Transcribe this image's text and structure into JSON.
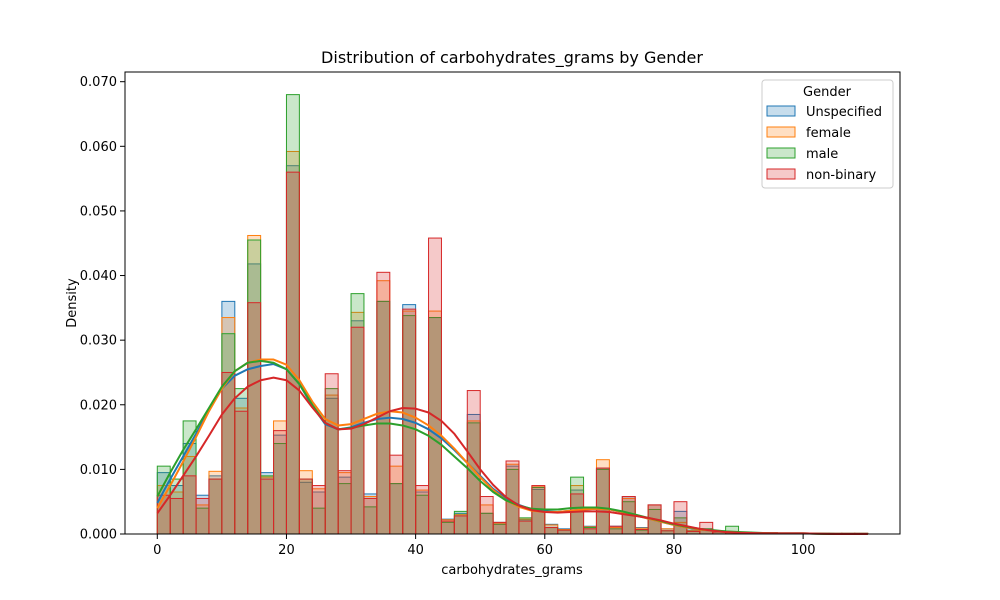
{
  "chart_data": {
    "type": "histogram",
    "title": "Distribution of carbohydrates_grams by Gender",
    "xlabel": "carbohydrates_grams",
    "ylabel": "Density",
    "xlim": [
      -5,
      115
    ],
    "ylim": [
      0,
      0.0715
    ],
    "x_ticks": [
      0,
      20,
      40,
      60,
      80,
      100
    ],
    "y_ticks": [
      0.0,
      0.01,
      0.02,
      0.03,
      0.04,
      0.05,
      0.06,
      0.07
    ],
    "y_tick_labels": [
      "0.000",
      "0.010",
      "0.020",
      "0.030",
      "0.040",
      "0.050",
      "0.060",
      "0.070"
    ],
    "bin_width": 2,
    "bin_edges_start": 0,
    "legend": {
      "title": "Gender",
      "position": "top-right"
    },
    "series": [
      {
        "name": "Unspecified",
        "edge_color": "#1f77b4",
        "fill_color": "#1f77b4",
        "densities": [
          0.0095,
          0.0075,
          0.014,
          0.006,
          0.009,
          0.036,
          0.021,
          0.0418,
          0.0095,
          0.0153,
          0.057,
          0.008,
          0.0065,
          0.021,
          0.0088,
          0.033,
          0.0062,
          0.036,
          0.0078,
          0.0355,
          0.0065,
          0.0335,
          0.0023,
          0.0032,
          0.0185,
          0.0032,
          0.0018,
          0.0105,
          0.0022,
          0.0069,
          0.0015,
          0.0008,
          0.0068,
          0.0012,
          0.0102,
          0.0012,
          0.0058,
          0.001,
          0.0045,
          0.0008,
          0.0035,
          0.0006,
          0.0008,
          0.0005,
          0.0002,
          0.0003,
          0.0002,
          0.0002,
          0.0001,
          0.0001,
          0.0001,
          0.0001,
          0.0001,
          0.0001,
          0.0001
        ],
        "kde": [
          [
            0,
            0.0048
          ],
          [
            2,
            0.0085
          ],
          [
            4,
            0.012
          ],
          [
            6,
            0.0155
          ],
          [
            8,
            0.0192
          ],
          [
            10,
            0.0225
          ],
          [
            12,
            0.0245
          ],
          [
            14,
            0.0255
          ],
          [
            16,
            0.026
          ],
          [
            18,
            0.0263
          ],
          [
            20,
            0.0255
          ],
          [
            22,
            0.0232
          ],
          [
            24,
            0.0198
          ],
          [
            26,
            0.017
          ],
          [
            28,
            0.0162
          ],
          [
            30,
            0.0165
          ],
          [
            32,
            0.0172
          ],
          [
            34,
            0.0178
          ],
          [
            36,
            0.018
          ],
          [
            38,
            0.0178
          ],
          [
            40,
            0.0172
          ],
          [
            42,
            0.0162
          ],
          [
            44,
            0.0148
          ],
          [
            46,
            0.013
          ],
          [
            48,
            0.011
          ],
          [
            50,
            0.009
          ],
          [
            52,
            0.007
          ],
          [
            54,
            0.0055
          ],
          [
            56,
            0.0045
          ],
          [
            58,
            0.0038
          ],
          [
            60,
            0.0035
          ],
          [
            62,
            0.0034
          ],
          [
            64,
            0.0036
          ],
          [
            66,
            0.0038
          ],
          [
            68,
            0.0039
          ],
          [
            70,
            0.0038
          ],
          [
            72,
            0.0034
          ],
          [
            74,
            0.0029
          ],
          [
            76,
            0.0024
          ],
          [
            78,
            0.0019
          ],
          [
            80,
            0.0014
          ],
          [
            82,
            0.001
          ],
          [
            84,
            0.0007
          ],
          [
            86,
            0.0005
          ],
          [
            88,
            0.0003
          ],
          [
            90,
            0.0002
          ],
          [
            95,
            0.0001
          ],
          [
            100,
            0.0001
          ],
          [
            105,
            0.0
          ],
          [
            110,
            0.0
          ]
        ]
      },
      {
        "name": "female",
        "edge_color": "#ff7f0e",
        "fill_color": "#ff7f0e",
        "densities": [
          0.0075,
          0.0065,
          0.012,
          0.0045,
          0.0097,
          0.0335,
          0.0195,
          0.0462,
          0.0088,
          0.0175,
          0.0592,
          0.0098,
          0.007,
          0.0215,
          0.0095,
          0.0343,
          0.0058,
          0.0392,
          0.0105,
          0.0345,
          0.0068,
          0.0345,
          0.0022,
          0.003,
          0.0175,
          0.0045,
          0.0017,
          0.0108,
          0.0023,
          0.0073,
          0.0014,
          0.0007,
          0.0075,
          0.0011,
          0.0115,
          0.001,
          0.0055,
          0.0009,
          0.0045,
          0.0008,
          0.0018,
          0.0005,
          0.0006,
          0.0004,
          0.0002,
          0.0003,
          0.0002,
          0.0002,
          0.0001,
          0.0001,
          0.0001,
          0.0001,
          0.0001,
          0.0001,
          0.0001
        ],
        "kde": [
          [
            0,
            0.004
          ],
          [
            2,
            0.0075
          ],
          [
            4,
            0.0112
          ],
          [
            6,
            0.015
          ],
          [
            8,
            0.019
          ],
          [
            10,
            0.0225
          ],
          [
            12,
            0.0252
          ],
          [
            14,
            0.0265
          ],
          [
            16,
            0.027
          ],
          [
            18,
            0.027
          ],
          [
            20,
            0.0262
          ],
          [
            22,
            0.0238
          ],
          [
            24,
            0.0205
          ],
          [
            26,
            0.0178
          ],
          [
            28,
            0.0168
          ],
          [
            30,
            0.017
          ],
          [
            32,
            0.0178
          ],
          [
            34,
            0.0186
          ],
          [
            36,
            0.019
          ],
          [
            38,
            0.0188
          ],
          [
            40,
            0.018
          ],
          [
            42,
            0.0168
          ],
          [
            44,
            0.0152
          ],
          [
            46,
            0.0132
          ],
          [
            48,
            0.011
          ],
          [
            50,
            0.0088
          ],
          [
            52,
            0.0068
          ],
          [
            54,
            0.0052
          ],
          [
            56,
            0.0042
          ],
          [
            58,
            0.0036
          ],
          [
            60,
            0.0034
          ],
          [
            62,
            0.0034
          ],
          [
            64,
            0.0036
          ],
          [
            66,
            0.0038
          ],
          [
            68,
            0.0039
          ],
          [
            70,
            0.0038
          ],
          [
            72,
            0.0034
          ],
          [
            74,
            0.0029
          ],
          [
            76,
            0.0024
          ],
          [
            78,
            0.0019
          ],
          [
            80,
            0.0014
          ],
          [
            82,
            0.001
          ],
          [
            84,
            0.0007
          ],
          [
            86,
            0.0005
          ],
          [
            88,
            0.0003
          ],
          [
            90,
            0.0002
          ],
          [
            95,
            0.0001
          ],
          [
            100,
            0.0001
          ],
          [
            105,
            0.0
          ],
          [
            110,
            0.0
          ]
        ]
      },
      {
        "name": "male",
        "edge_color": "#2ca02c",
        "fill_color": "#2ca02c",
        "densities": [
          0.0105,
          0.0085,
          0.0175,
          0.004,
          0.0085,
          0.031,
          0.0225,
          0.0455,
          0.009,
          0.014,
          0.068,
          0.0085,
          0.004,
          0.0225,
          0.0078,
          0.0372,
          0.0042,
          0.036,
          0.0078,
          0.0338,
          0.006,
          0.0335,
          0.0018,
          0.0035,
          0.0172,
          0.0032,
          0.0015,
          0.01,
          0.0025,
          0.0072,
          0.001,
          0.0006,
          0.0088,
          0.001,
          0.01,
          0.0008,
          0.005,
          0.0006,
          0.0038,
          0.0005,
          0.0025,
          0.0004,
          0.0008,
          0.0003,
          0.0012,
          0.0002,
          0.0002,
          0.0002,
          0.0001,
          0.0001,
          0.0001,
          0.0001,
          0.0001,
          0.0001,
          0.0001
        ],
        "kde": [
          [
            0,
            0.0058
          ],
          [
            2,
            0.0095
          ],
          [
            4,
            0.013
          ],
          [
            6,
            0.0162
          ],
          [
            8,
            0.0195
          ],
          [
            10,
            0.0228
          ],
          [
            12,
            0.0252
          ],
          [
            14,
            0.0265
          ],
          [
            16,
            0.0268
          ],
          [
            18,
            0.0265
          ],
          [
            20,
            0.0255
          ],
          [
            22,
            0.0232
          ],
          [
            24,
            0.02
          ],
          [
            26,
            0.0172
          ],
          [
            28,
            0.0162
          ],
          [
            30,
            0.0164
          ],
          [
            32,
            0.0168
          ],
          [
            34,
            0.0171
          ],
          [
            36,
            0.0171
          ],
          [
            38,
            0.0168
          ],
          [
            40,
            0.0162
          ],
          [
            42,
            0.0152
          ],
          [
            44,
            0.0138
          ],
          [
            46,
            0.012
          ],
          [
            48,
            0.0102
          ],
          [
            50,
            0.0082
          ],
          [
            52,
            0.0065
          ],
          [
            54,
            0.0052
          ],
          [
            56,
            0.0044
          ],
          [
            58,
            0.0039
          ],
          [
            60,
            0.0038
          ],
          [
            62,
            0.0038
          ],
          [
            64,
            0.004
          ],
          [
            66,
            0.0041
          ],
          [
            68,
            0.0041
          ],
          [
            70,
            0.0039
          ],
          [
            72,
            0.0035
          ],
          [
            74,
            0.003
          ],
          [
            76,
            0.0025
          ],
          [
            78,
            0.002
          ],
          [
            80,
            0.0015
          ],
          [
            82,
            0.0011
          ],
          [
            84,
            0.0008
          ],
          [
            86,
            0.0006
          ],
          [
            88,
            0.0004
          ],
          [
            90,
            0.0003
          ],
          [
            95,
            0.0001
          ],
          [
            100,
            0.0001
          ],
          [
            105,
            0.0
          ],
          [
            110,
            0.0
          ]
        ]
      },
      {
        "name": "non-binary",
        "edge_color": "#d62728",
        "fill_color": "#d62728",
        "densities": [
          0.006,
          0.0055,
          0.009,
          0.0055,
          0.0085,
          0.025,
          0.019,
          0.0358,
          0.0085,
          0.016,
          0.056,
          0.0085,
          0.0075,
          0.0248,
          0.0098,
          0.032,
          0.0055,
          0.0405,
          0.0122,
          0.0348,
          0.0075,
          0.0458,
          0.002,
          0.0028,
          0.0222,
          0.0058,
          0.0018,
          0.0113,
          0.002,
          0.0075,
          0.001,
          0.0006,
          0.0062,
          0.0008,
          0.0102,
          0.0012,
          0.0058,
          0.0007,
          0.0045,
          0.0005,
          0.005,
          0.0004,
          0.0018,
          0.0003,
          0.0003,
          0.0002,
          0.0002,
          0.0002,
          0.0001,
          0.0001,
          0.0001,
          0.0001,
          0.0001,
          0.0001,
          0.0001
        ],
        "kde": [
          [
            0,
            0.0032
          ],
          [
            2,
            0.006
          ],
          [
            4,
            0.009
          ],
          [
            6,
            0.012
          ],
          [
            8,
            0.0152
          ],
          [
            10,
            0.0185
          ],
          [
            12,
            0.021
          ],
          [
            14,
            0.0228
          ],
          [
            16,
            0.0238
          ],
          [
            18,
            0.0242
          ],
          [
            20,
            0.0238
          ],
          [
            22,
            0.0222
          ],
          [
            24,
            0.0196
          ],
          [
            26,
            0.0172
          ],
          [
            28,
            0.0162
          ],
          [
            30,
            0.0163
          ],
          [
            32,
            0.017
          ],
          [
            34,
            0.018
          ],
          [
            36,
            0.019
          ],
          [
            38,
            0.0195
          ],
          [
            40,
            0.0194
          ],
          [
            42,
            0.0188
          ],
          [
            44,
            0.0175
          ],
          [
            46,
            0.0155
          ],
          [
            48,
            0.0128
          ],
          [
            50,
            0.01
          ],
          [
            52,
            0.0076
          ],
          [
            54,
            0.0057
          ],
          [
            56,
            0.0044
          ],
          [
            58,
            0.0037
          ],
          [
            60,
            0.0034
          ],
          [
            62,
            0.0033
          ],
          [
            64,
            0.0034
          ],
          [
            66,
            0.0035
          ],
          [
            68,
            0.0035
          ],
          [
            70,
            0.0034
          ],
          [
            72,
            0.0031
          ],
          [
            74,
            0.0028
          ],
          [
            76,
            0.0025
          ],
          [
            78,
            0.0021
          ],
          [
            80,
            0.0016
          ],
          [
            82,
            0.0012
          ],
          [
            84,
            0.0008
          ],
          [
            86,
            0.0005
          ],
          [
            88,
            0.0003
          ],
          [
            90,
            0.0002
          ],
          [
            95,
            0.0001
          ],
          [
            100,
            0.0001
          ],
          [
            105,
            0.0
          ],
          [
            110,
            0.0
          ]
        ]
      }
    ]
  }
}
